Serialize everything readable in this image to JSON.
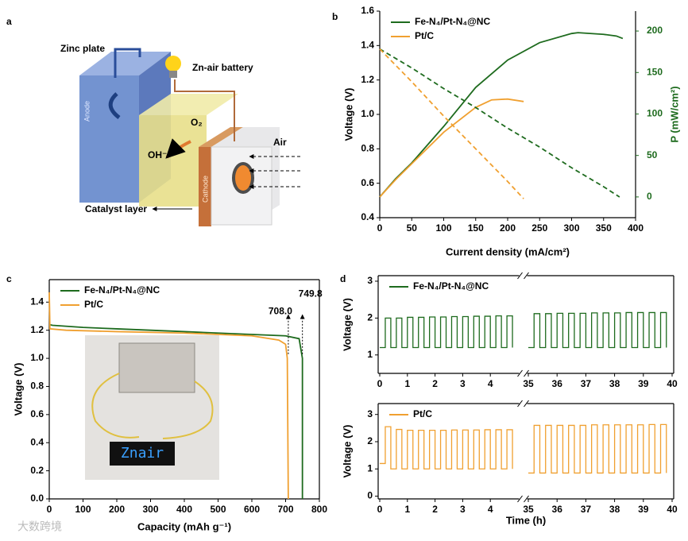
{
  "panels": [
    "a",
    "b",
    "c",
    "d"
  ],
  "diagram": {
    "labels": {
      "zinc": "Zinc plate",
      "battery": "Zn-air battery",
      "o2": "O₂",
      "oh": "OH⁻",
      "air": "Air",
      "anode": "Anode",
      "cathode": "Cathode",
      "catalyst": "Catalyst layer"
    }
  },
  "inset": {
    "display": "Znair"
  },
  "watermark": "大数跨境",
  "chart_data": [
    {
      "type": "line",
      "xlabel": "Current density (mA/cm²)",
      "ylabel": "Voltage (V)",
      "y2label": "P (mW/cm²)",
      "y2color": "#1e6b1e",
      "xlim": [
        0,
        400
      ],
      "xticks": [
        0,
        50,
        100,
        150,
        200,
        250,
        300,
        350,
        400
      ],
      "ylim": [
        0.4,
        1.6
      ],
      "yticks": [
        0.4,
        0.6,
        0.8,
        {
          "value": 1,
          "label": "1.0"
        },
        1.2,
        1.4,
        1.6
      ],
      "y2lim": [
        -25,
        224
      ],
      "y2ticks": [
        0,
        50,
        100,
        150,
        200
      ],
      "legend": "upper left",
      "series": [
        {
          "name": "Fe-N₄/Pt-N₄@NC",
          "color": "#1e6b1e",
          "axis": "y2",
          "linestyle": "solid",
          "x": [
            0,
            25,
            50,
            100,
            150,
            200,
            250,
            300,
            310,
            350,
            370,
            380
          ],
          "values": [
            0,
            22,
            41,
            85,
            132,
            165,
            186,
            197,
            198,
            196,
            194,
            191
          ]
        },
        {
          "name": "Pt/C",
          "color": "#f0a030",
          "axis": "y2",
          "linestyle": "solid",
          "x": [
            0,
            25,
            50,
            100,
            150,
            175,
            200,
            225
          ],
          "values": [
            0,
            21,
            40,
            78,
            108,
            117,
            118,
            115
          ]
        },
        {
          "color": "#1e6b1e",
          "linestyle": "dashed",
          "x": [
            0,
            50,
            100,
            150,
            200,
            250,
            300,
            350,
            375
          ],
          "values": [
            1.38,
            1.27,
            1.15,
            1.04,
            0.92,
            0.81,
            0.69,
            0.58,
            0.52
          ]
        },
        {
          "color": "#f0a030",
          "linestyle": "dashed",
          "x": [
            0,
            50,
            100,
            150,
            200,
            225
          ],
          "values": [
            1.38,
            1.19,
            0.99,
            0.8,
            0.61,
            0.51
          ]
        }
      ]
    },
    {
      "type": "line",
      "xlabel": "Capacity (mAh g⁻¹)",
      "ylabel": "Voltage (V)",
      "xlim": [
        0,
        800
      ],
      "xticks": [
        0,
        100,
        200,
        300,
        400,
        500,
        600,
        700,
        800
      ],
      "ylim": [
        0,
        1.56
      ],
      "yticks": [
        {
          "value": 0,
          "label": "0.0"
        },
        0.2,
        0.4,
        0.6,
        0.8,
        {
          "value": 1,
          "label": "1.0"
        },
        1.2,
        1.4
      ],
      "legend": "upper left",
      "annotations": [
        {
          "x": 708,
          "text": "708.0"
        },
        {
          "x": 749.8,
          "text": "749.8"
        }
      ],
      "series": [
        {
          "name": "Fe-N₄/Pt-N₄@NC",
          "color": "#1e6b1e",
          "linestyle": "solid",
          "x": [
            0,
            10,
            100,
            200,
            300,
            400,
            500,
            600,
            700,
            740,
            749.8,
            749.8
          ],
          "values": [
            1.24,
            1.235,
            1.22,
            1.21,
            1.2,
            1.19,
            1.18,
            1.17,
            1.16,
            1.14,
            1.0,
            0
          ]
        },
        {
          "name": "Pt/C",
          "color": "#f0a030",
          "linestyle": "solid",
          "x": [
            0,
            2,
            50,
            200,
            400,
            600,
            680,
            700,
            705,
            708
          ],
          "values": [
            1.47,
            1.21,
            1.2,
            1.19,
            1.18,
            1.16,
            1.13,
            1.1,
            1.0,
            0
          ]
        }
      ]
    },
    {
      "type": "line",
      "drawstyle": "steps",
      "ylabel": "Voltage (V)",
      "xlim_segments": [
        [
          0,
          5
        ],
        [
          35,
          40
        ]
      ],
      "xticks": [
        0,
        1,
        2,
        3,
        4,
        35,
        36,
        37,
        38,
        39,
        40
      ],
      "ylim": [
        0.5,
        3.15
      ],
      "yticks": [
        1,
        2,
        3
      ],
      "legend": "upper left",
      "series": [
        {
          "name": "Fe-N₄/Pt-N₄@NC",
          "color": "#1e6b1e",
          "linestyle": "solid",
          "x": [
            0,
            0.2,
            0.4,
            0.6,
            0.8,
            1,
            1.2,
            1.4,
            1.6,
            1.8,
            2,
            2.2,
            2.4,
            2.6,
            2.8,
            3,
            3.2,
            3.4,
            3.6,
            3.8,
            4,
            4.2,
            4.4,
            4.6,
            4.8
          ],
          "values": [
            1.2,
            2.0,
            1.2,
            2.0,
            1.2,
            2.02,
            1.2,
            2.02,
            1.2,
            2.03,
            1.2,
            2.03,
            1.2,
            2.04,
            1.2,
            2.04,
            1.2,
            2.05,
            1.2,
            2.05,
            1.2,
            2.06,
            1.2,
            2.06,
            1.2
          ]
        },
        {
          "color": "#1e6b1e",
          "linestyle": "solid",
          "x": [
            35,
            35.2,
            35.4,
            35.6,
            35.8,
            36,
            36.2,
            36.4,
            36.6,
            36.8,
            37,
            37.2,
            37.4,
            37.6,
            37.8,
            38,
            38.2,
            38.4,
            38.6,
            38.8,
            39,
            39.2,
            39.4,
            39.6,
            39.8
          ],
          "values": [
            1.2,
            2.12,
            1.2,
            2.12,
            1.2,
            2.13,
            1.2,
            2.13,
            1.2,
            2.13,
            1.2,
            2.14,
            1.2,
            2.14,
            1.2,
            2.14,
            1.2,
            2.15,
            1.2,
            2.15,
            1.2,
            2.15,
            1.2,
            2.15,
            1.2
          ]
        }
      ]
    },
    {
      "type": "line",
      "drawstyle": "steps",
      "xlabel": "Time (h)",
      "ylabel": "Voltage (V)",
      "xlim_segments": [
        [
          0,
          5
        ],
        [
          35,
          40
        ]
      ],
      "xticks": [
        0,
        1,
        2,
        3,
        4,
        35,
        36,
        37,
        38,
        39,
        40
      ],
      "ylim": [
        -0.1,
        3.4
      ],
      "yticks": [
        0,
        1,
        2,
        3
      ],
      "legend": "upper left",
      "series": [
        {
          "name": "Pt/C",
          "color": "#f0a030",
          "linestyle": "solid",
          "x": [
            0,
            0.2,
            0.4,
            0.6,
            0.8,
            1,
            1.2,
            1.4,
            1.6,
            1.8,
            2,
            2.2,
            2.4,
            2.6,
            2.8,
            3,
            3.2,
            3.4,
            3.6,
            3.8,
            4,
            4.2,
            4.4,
            4.6,
            4.8
          ],
          "values": [
            1.2,
            2.55,
            1.0,
            2.45,
            1.0,
            2.42,
            1.0,
            2.42,
            1.0,
            2.42,
            1.0,
            2.42,
            1.0,
            2.43,
            1.0,
            2.43,
            1.0,
            2.43,
            1.0,
            2.44,
            1.0,
            2.44,
            1.0,
            2.44,
            1.0
          ]
        },
        {
          "color": "#f0a030",
          "linestyle": "solid",
          "x": [
            35,
            35.2,
            35.4,
            35.6,
            35.8,
            36,
            36.2,
            36.4,
            36.6,
            36.8,
            37,
            37.2,
            37.4,
            37.6,
            37.8,
            38,
            38.2,
            38.4,
            38.6,
            38.8,
            39,
            39.2,
            39.4,
            39.6,
            39.8
          ],
          "values": [
            0.85,
            2.6,
            0.85,
            2.6,
            0.85,
            2.6,
            0.85,
            2.6,
            0.85,
            2.6,
            0.85,
            2.62,
            0.85,
            2.62,
            0.85,
            2.62,
            0.85,
            2.62,
            0.85,
            2.62,
            0.85,
            2.63,
            0.85,
            2.63,
            0.85
          ]
        }
      ]
    }
  ]
}
